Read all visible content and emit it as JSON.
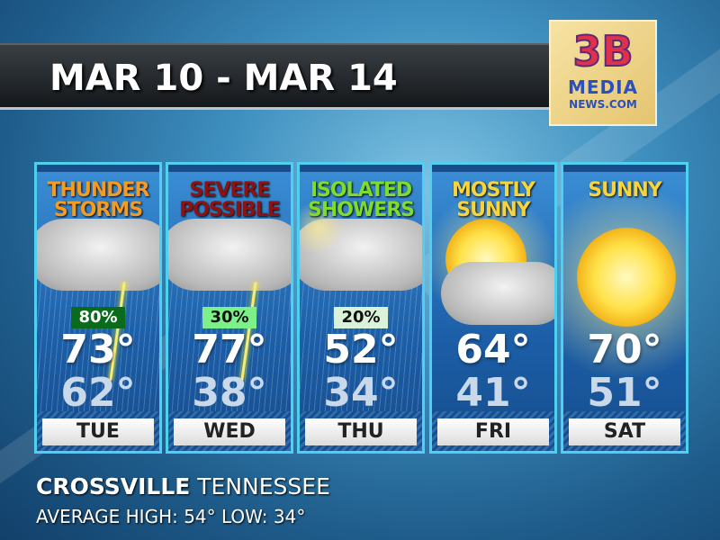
{
  "header": {
    "title": "MAR 10 - MAR 14"
  },
  "logo": {
    "line1": "3B",
    "line2": "MEDIA",
    "line3": "NEWS.COM"
  },
  "days": [
    {
      "day": "TUE",
      "condition_line1": "THUNDER",
      "condition_line2": "STORMS",
      "condition_color": "#f59a23",
      "icon": "thunderstorm-icon",
      "precip": "80%",
      "precip_bg": "#0b6b1c",
      "precip_fg": "#ffffff",
      "high": "73°",
      "low": "62°"
    },
    {
      "day": "WED",
      "condition_line1": "SEVERE",
      "condition_line2": "POSSIBLE",
      "condition_color": "#8e1212",
      "icon": "thunderstorm-icon",
      "precip": "30%",
      "precip_bg": "#7ef08a",
      "precip_fg": "#111111",
      "high": "77°",
      "low": "38°"
    },
    {
      "day": "THU",
      "condition_line1": "ISOLATED",
      "condition_line2": "SHOWERS",
      "condition_color": "#7fdc2a",
      "icon": "rain-shower-icon",
      "precip": "20%",
      "precip_bg": "#d9f2d9",
      "precip_fg": "#111111",
      "high": "52°",
      "low": "34°"
    },
    {
      "day": "FRI",
      "condition_line1": "MOSTLY",
      "condition_line2": "SUNNY",
      "condition_color": "#f7d53a",
      "icon": "partly-sunny-icon",
      "high": "64°",
      "low": "41°"
    },
    {
      "day": "SAT",
      "condition_line1": "SUNNY",
      "condition_line2": "",
      "condition_color": "#f7d53a",
      "icon": "sun-icon",
      "high": "70°",
      "low": "51°"
    }
  ],
  "footer": {
    "city": "CROSSVILLE",
    "state": "TENNESSEE",
    "averages": "AVERAGE HIGH: 54° LOW: 34°"
  }
}
